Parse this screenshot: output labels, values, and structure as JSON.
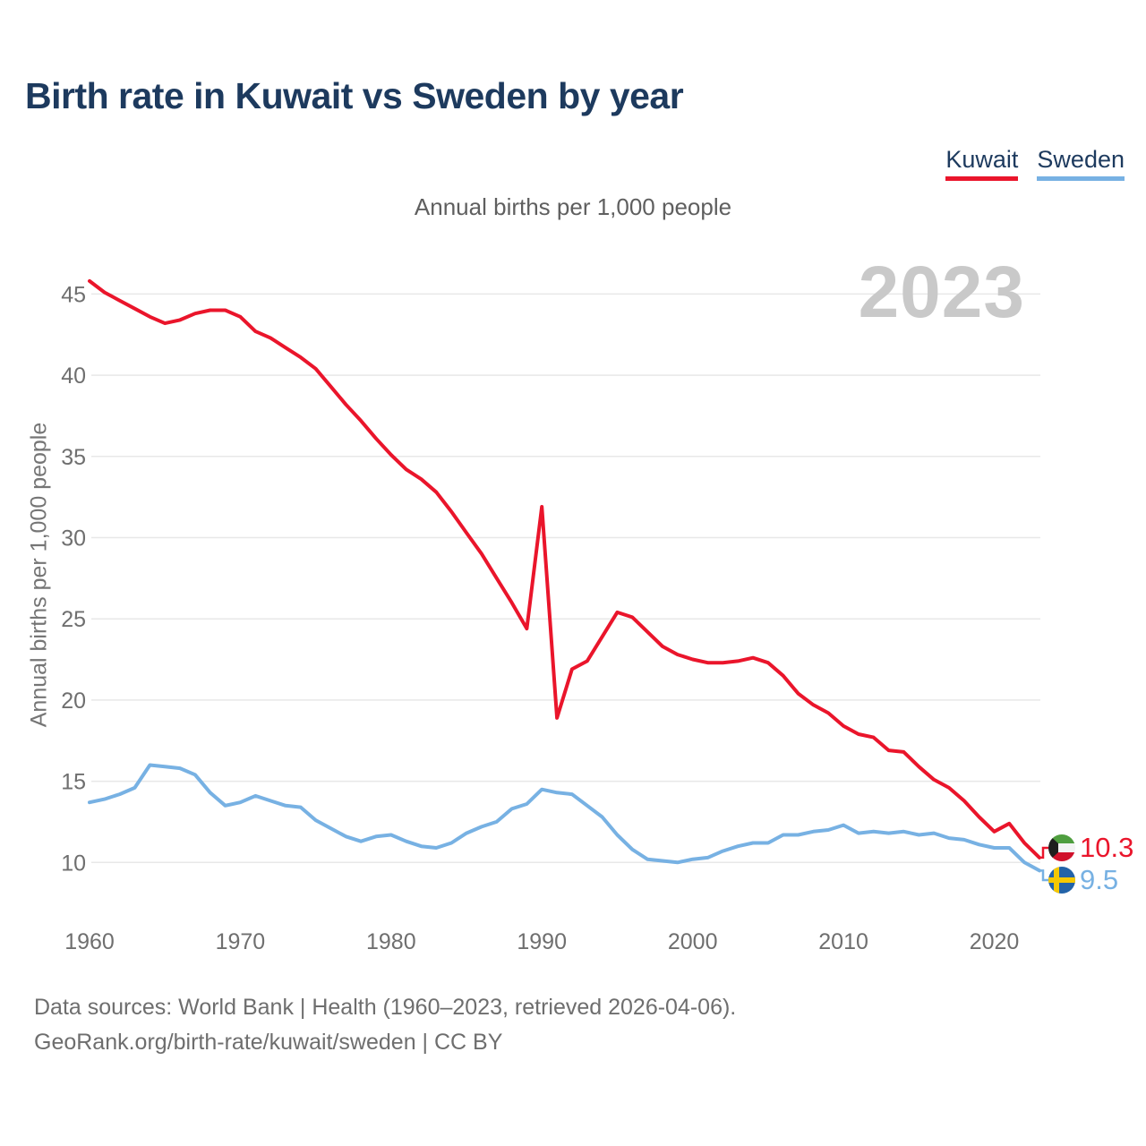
{
  "header": {
    "title": "Birth rate in Kuwait vs Sweden by year",
    "subtitle": "Annual births per 1,000 people"
  },
  "legend": {
    "items": [
      {
        "label": "Kuwait",
        "color": "#ea152b"
      },
      {
        "label": "Sweden",
        "color": "#77b1e3"
      }
    ]
  },
  "watermark": "2023",
  "y_axis_title": "Annual births per 1,000 people",
  "end_labels": {
    "kuwait": {
      "value": "10.3"
    },
    "sweden": {
      "value": "9.5"
    }
  },
  "flag_colors": {
    "kuwait": {
      "green": "#4f9e3f",
      "white": "#f4f4f4",
      "red": "#d0112b",
      "black": "#1f1f1f"
    },
    "sweden": {
      "blue": "#2363a8",
      "yellow": "#f6c800"
    }
  },
  "axis_colors": {
    "tick_text": "#6f6f6f",
    "gridline": "#e8e8e8"
  },
  "footer": {
    "line1": "Data sources: World Bank | Health (1960–2023, retrieved 2026-04-06).",
    "line2": "GeoRank.org/birth-rate/kuwait/sweden | CC BY"
  },
  "chart_data": {
    "type": "line",
    "title": "Birth rate in Kuwait vs Sweden by year",
    "xlabel": "",
    "ylabel": "Annual births per 1,000 people",
    "grid": "horizontal",
    "legend_position": "top-right",
    "x_ticks": [
      1960,
      1970,
      1980,
      1990,
      2000,
      2010,
      2020
    ],
    "y_ticks": [
      10,
      15,
      20,
      25,
      30,
      35,
      40,
      45
    ],
    "ylim": [
      8.5,
      46.5
    ],
    "xlim": [
      1960,
      2023
    ],
    "x": [
      1960,
      1961,
      1962,
      1963,
      1964,
      1965,
      1966,
      1967,
      1968,
      1969,
      1970,
      1971,
      1972,
      1973,
      1974,
      1975,
      1976,
      1977,
      1978,
      1979,
      1980,
      1981,
      1982,
      1983,
      1984,
      1985,
      1986,
      1987,
      1988,
      1989,
      1990,
      1991,
      1992,
      1993,
      1994,
      1995,
      1996,
      1997,
      1998,
      1999,
      2000,
      2001,
      2002,
      2003,
      2004,
      2005,
      2006,
      2007,
      2008,
      2009,
      2010,
      2011,
      2012,
      2013,
      2014,
      2015,
      2016,
      2017,
      2018,
      2019,
      2020,
      2021,
      2022,
      2023
    ],
    "series": [
      {
        "name": "Kuwait",
        "color": "#ea152b",
        "end_value": 10.3,
        "values": [
          45.8,
          45.1,
          44.6,
          44.1,
          43.6,
          43.2,
          43.4,
          43.8,
          44.0,
          44.0,
          43.6,
          42.7,
          42.3,
          41.7,
          41.1,
          40.4,
          39.3,
          38.2,
          37.2,
          36.1,
          35.1,
          34.2,
          33.6,
          32.8,
          31.6,
          30.3,
          29.0,
          27.5,
          26.0,
          24.4,
          31.9,
          18.9,
          21.9,
          22.4,
          23.9,
          25.4,
          25.1,
          24.2,
          23.3,
          22.8,
          22.5,
          22.3,
          22.3,
          22.4,
          22.6,
          22.3,
          21.5,
          20.4,
          19.7,
          19.2,
          18.4,
          17.9,
          17.7,
          16.9,
          16.8,
          15.9,
          15.1,
          14.6,
          13.8,
          12.8,
          11.9,
          12.4,
          11.2,
          10.3
        ]
      },
      {
        "name": "Sweden",
        "color": "#77b1e3",
        "end_value": 9.5,
        "values": [
          13.7,
          13.9,
          14.2,
          14.6,
          16.0,
          15.9,
          15.8,
          15.4,
          14.3,
          13.5,
          13.7,
          14.1,
          13.8,
          13.5,
          13.4,
          12.6,
          12.1,
          11.6,
          11.3,
          11.6,
          11.7,
          11.3,
          11.0,
          10.9,
          11.2,
          11.8,
          12.2,
          12.5,
          13.3,
          13.6,
          14.5,
          14.3,
          14.2,
          13.5,
          12.8,
          11.7,
          10.8,
          10.2,
          10.1,
          10.0,
          10.2,
          10.3,
          10.7,
          11.0,
          11.2,
          11.2,
          11.7,
          11.7,
          11.9,
          12.0,
          12.3,
          11.8,
          11.9,
          11.8,
          11.9,
          11.7,
          11.8,
          11.5,
          11.4,
          11.1,
          10.9,
          10.9,
          10.0,
          9.5
        ]
      }
    ]
  }
}
